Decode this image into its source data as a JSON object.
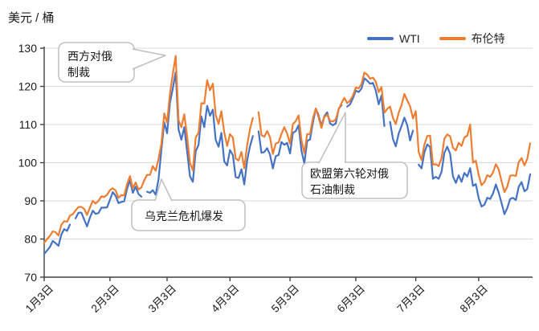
{
  "chart_data": {
    "type": "line",
    "unit_label": "美元 / 桶",
    "ylabel": "美元 / 桶",
    "ylim": [
      70,
      130
    ],
    "yticks": [
      70,
      80,
      90,
      100,
      110,
      120,
      130
    ],
    "grid": "horizontal",
    "legend_position": "top-right",
    "xtick_labels": [
      "1月3日",
      "2月3日",
      "3月3日",
      "4月3日",
      "5月3日",
      "6月3日",
      "7月3日",
      "8月3日"
    ],
    "xtick_dates": [
      "01-03",
      "02-03",
      "03-03",
      "04-04",
      "05-03",
      "06-03",
      "07-04",
      "08-03"
    ],
    "x": [
      "01-03",
      "01-04",
      "01-05",
      "01-06",
      "01-07",
      "01-10",
      "01-11",
      "01-12",
      "01-13",
      "01-14",
      "01-17",
      "01-18",
      "01-19",
      "01-20",
      "01-21",
      "01-24",
      "01-25",
      "01-26",
      "01-27",
      "01-28",
      "01-31",
      "02-01",
      "02-02",
      "02-03",
      "02-04",
      "02-07",
      "02-08",
      "02-09",
      "02-10",
      "02-11",
      "02-14",
      "02-15",
      "02-16",
      "02-17",
      "02-18",
      "02-21",
      "02-22",
      "02-23",
      "02-24",
      "02-25",
      "02-28",
      "03-01",
      "03-02",
      "03-03",
      "03-04",
      "03-07",
      "03-08",
      "03-09",
      "03-10",
      "03-11",
      "03-14",
      "03-15",
      "03-16",
      "03-17",
      "03-18",
      "03-21",
      "03-22",
      "03-23",
      "03-24",
      "03-25",
      "03-28",
      "03-29",
      "03-30",
      "03-31",
      "04-01",
      "04-04",
      "04-05",
      "04-06",
      "04-07",
      "04-08",
      "04-11",
      "04-12",
      "04-13",
      "04-14",
      "04-15",
      "04-18",
      "04-19",
      "04-20",
      "04-21",
      "04-22",
      "04-25",
      "04-26",
      "04-27",
      "04-28",
      "04-29",
      "05-02",
      "05-03",
      "05-04",
      "05-05",
      "05-06",
      "05-09",
      "05-10",
      "05-11",
      "05-12",
      "05-13",
      "05-16",
      "05-17",
      "05-18",
      "05-19",
      "05-20",
      "05-23",
      "05-24",
      "05-25",
      "05-26",
      "05-27",
      "05-30",
      "05-31",
      "06-01",
      "06-02",
      "06-03",
      "06-06",
      "06-07",
      "06-08",
      "06-09",
      "06-10",
      "06-13",
      "06-14",
      "06-15",
      "06-16",
      "06-17",
      "06-20",
      "06-21",
      "06-22",
      "06-23",
      "06-24",
      "06-27",
      "06-28",
      "06-29",
      "06-30",
      "07-01",
      "07-04",
      "07-05",
      "07-06",
      "07-07",
      "07-08",
      "07-11",
      "07-12",
      "07-13",
      "07-14",
      "07-15",
      "07-18",
      "07-19",
      "07-20",
      "07-21",
      "07-22",
      "07-25",
      "07-26",
      "07-27",
      "07-28",
      "07-29",
      "08-01",
      "08-02",
      "08-03",
      "08-04",
      "08-05",
      "08-08",
      "08-09",
      "08-10",
      "08-11",
      "08-12",
      "08-15",
      "08-16",
      "08-17",
      "08-18",
      "08-19",
      "08-22",
      "08-23",
      "08-24",
      "08-25",
      "08-26",
      "08-29"
    ],
    "series": [
      {
        "name": "WTI",
        "color": "#4472C4",
        "values": [
          76.1,
          77.0,
          77.9,
          79.5,
          78.9,
          78.2,
          81.2,
          82.6,
          82.1,
          83.8,
          null,
          85.4,
          86.9,
          86.9,
          85.1,
          83.3,
          85.6,
          87.4,
          86.6,
          86.8,
          88.2,
          88.2,
          88.3,
          90.3,
          92.3,
          91.3,
          89.4,
          89.7,
          89.9,
          93.1,
          95.5,
          92.1,
          93.7,
          91.8,
          91.1,
          null,
          92.4,
          92.1,
          92.8,
          91.6,
          95.7,
          103.4,
          110.6,
          107.7,
          115.7,
          119.4,
          123.7,
          108.7,
          106.0,
          109.3,
          103.0,
          96.4,
          95.0,
          103.0,
          104.7,
          112.1,
          109.3,
          114.9,
          112.3,
          113.9,
          106.0,
          104.2,
          107.8,
          100.3,
          99.3,
          103.3,
          102.0,
          96.2,
          96.0,
          98.3,
          94.3,
          100.6,
          104.3,
          107.0,
          null,
          108.2,
          102.6,
          102.8,
          103.8,
          102.1,
          98.5,
          101.7,
          102.0,
          105.4,
          104.7,
          105.2,
          102.4,
          107.8,
          108.3,
          109.8,
          103.1,
          99.8,
          105.7,
          106.1,
          110.5,
          114.2,
          112.4,
          109.6,
          112.2,
          113.2,
          110.3,
          109.8,
          110.3,
          114.1,
          115.1,
          null,
          114.7,
          115.3,
          116.9,
          118.9,
          118.5,
          119.4,
          122.1,
          121.5,
          120.7,
          120.9,
          118.9,
          115.3,
          117.6,
          109.6,
          null,
          110.7,
          106.2,
          104.3,
          107.6,
          109.6,
          111.8,
          109.8,
          105.8,
          108.4,
          null,
          99.5,
          98.5,
          102.7,
          104.8,
          104.1,
          95.8,
          96.3,
          95.8,
          97.6,
          102.6,
          104.2,
          102.3,
          96.4,
          94.7,
          96.7,
          95.0,
          97.3,
          96.4,
          98.6,
          93.9,
          94.4,
          90.7,
          88.5,
          89.0,
          90.8,
          90.5,
          91.9,
          94.3,
          92.1,
          89.4,
          86.5,
          88.1,
          90.5,
          90.8,
          90.2,
          93.7,
          94.9,
          92.5,
          93.1,
          97.0
        ]
      },
      {
        "name": "布伦特",
        "color": "#ED7D31",
        "values": [
          79.0,
          80.0,
          80.8,
          82.0,
          81.8,
          80.9,
          83.7,
          84.7,
          84.5,
          86.1,
          86.5,
          87.5,
          88.4,
          88.4,
          87.9,
          86.3,
          88.2,
          90.0,
          89.3,
          90.0,
          91.2,
          91.0,
          91.6,
          92.8,
          93.3,
          92.7,
          90.8,
          91.5,
          91.4,
          94.4,
          96.5,
          93.3,
          94.8,
          93.0,
          93.5,
          95.4,
          96.8,
          96.8,
          99.1,
          97.9,
          101.0,
          105.0,
          112.9,
          110.5,
          118.1,
          123.2,
          128.0,
          111.1,
          109.3,
          112.7,
          106.9,
          99.9,
          98.0,
          106.6,
          107.9,
          115.6,
          115.5,
          121.6,
          119.0,
          120.7,
          112.5,
          110.2,
          113.5,
          107.9,
          104.4,
          107.5,
          106.6,
          101.1,
          100.6,
          102.8,
          98.5,
          104.6,
          108.8,
          111.7,
          null,
          113.2,
          107.2,
          106.8,
          108.3,
          106.7,
          102.3,
          105.0,
          105.3,
          107.6,
          109.3,
          107.6,
          105.0,
          110.1,
          110.9,
          112.4,
          105.9,
          102.5,
          107.5,
          107.5,
          111.6,
          114.2,
          111.9,
          109.1,
          112.0,
          112.6,
          110.9,
          110.8,
          111.3,
          114.0,
          115.6,
          117.0,
          115.6,
          116.3,
          117.6,
          119.7,
          119.5,
          120.6,
          123.6,
          123.1,
          122.0,
          122.3,
          121.2,
          118.5,
          119.8,
          113.1,
          114.1,
          114.7,
          111.7,
          110.1,
          113.1,
          115.1,
          118.0,
          116.3,
          114.8,
          111.6,
          113.5,
          102.8,
          100.7,
          104.7,
          107.0,
          107.1,
          99.5,
          99.6,
          99.1,
          101.2,
          106.3,
          107.4,
          106.9,
          103.9,
          103.2,
          105.2,
          104.4,
          106.6,
          107.1,
          110.0,
          100.0,
          100.5,
          96.8,
          94.1,
          94.9,
          96.7,
          96.3,
          97.4,
          99.6,
          98.2,
          95.1,
          92.3,
          93.7,
          96.6,
          96.7,
          96.5,
          100.2,
          101.2,
          99.3,
          101.0,
          105.1
        ]
      }
    ],
    "annotations": [
      {
        "text": "西方对俄制裁",
        "lines": [
          "西方对俄",
          "制裁"
        ]
      },
      {
        "text": "乌克兰危机爆发",
        "lines": [
          "乌克兰危机爆发"
        ]
      },
      {
        "text": "欧盟第六轮对俄石油制裁",
        "lines": [
          "欧盟第六轮对俄",
          "石油制裁"
        ]
      }
    ]
  }
}
